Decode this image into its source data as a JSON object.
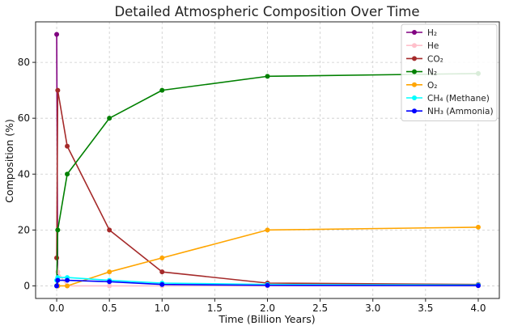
{
  "chart_data": {
    "type": "line",
    "title": "Detailed Atmospheric Composition Over Time",
    "xlabel": "Time (Billion Years)",
    "ylabel": "Composition (%)",
    "xlim": [
      -0.2,
      4.2
    ],
    "ylim": [
      -4.5,
      94.5
    ],
    "xticks": [
      0.0,
      0.5,
      1.0,
      1.5,
      2.0,
      2.5,
      3.0,
      3.5,
      4.0
    ],
    "xtick_labels": [
      "0.0",
      "0.5",
      "1.0",
      "1.5",
      "2.0",
      "2.5",
      "3.0",
      "3.5",
      "4.0"
    ],
    "yticks": [
      0,
      20,
      40,
      60,
      80
    ],
    "ytick_labels": [
      "0",
      "20",
      "40",
      "60",
      "80"
    ],
    "grid": true,
    "legend_position": "top-right",
    "x": [
      0.0,
      0.01,
      0.1,
      0.5,
      1.0,
      2.0,
      4.0
    ],
    "series": [
      {
        "name": "H₂",
        "color": "#800080",
        "values": [
          90,
          0,
          null,
          null,
          null,
          null,
          null
        ]
      },
      {
        "name": "He",
        "color": "#ffc0cb",
        "values": [
          10,
          5,
          0,
          0,
          0,
          0,
          0
        ]
      },
      {
        "name": "CO₂",
        "color": "#a52a2a",
        "values": [
          10,
          70,
          50,
          20,
          5,
          1,
          0.5
        ]
      },
      {
        "name": "N₂",
        "color": "#008000",
        "values": [
          0,
          20,
          40,
          60,
          70,
          75,
          76
        ]
      },
      {
        "name": "O₂",
        "color": "#ffa500",
        "values": [
          0,
          0,
          0,
          5,
          10,
          20,
          21
        ]
      },
      {
        "name": "CH₄ (Methane)",
        "color": "#00ffff",
        "values": [
          2,
          3,
          3,
          2,
          1,
          0.5,
          0.3
        ]
      },
      {
        "name": "NH₃ (Ammonia)",
        "color": "#0000ff",
        "values": [
          0,
          2,
          2,
          1.5,
          0.5,
          0.2,
          0.1
        ]
      }
    ]
  }
}
